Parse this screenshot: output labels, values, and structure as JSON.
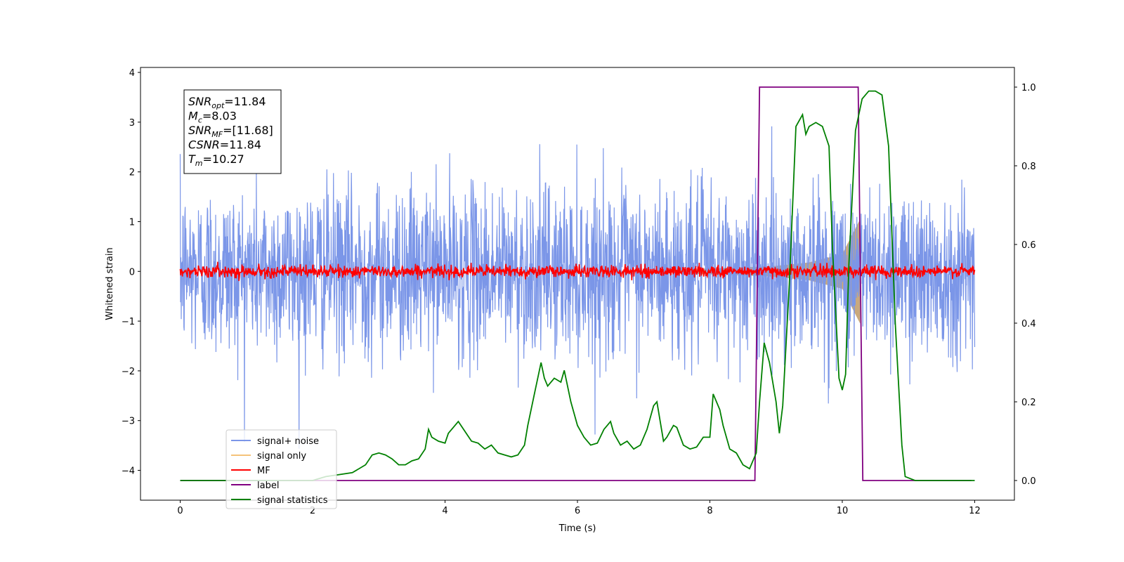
{
  "chart_data": {
    "type": "line",
    "xlabel": "Time (s)",
    "ylabel": "Whitened strain",
    "xlim": [
      -0.6,
      12.6
    ],
    "ylim": [
      -4.6,
      4.1
    ],
    "y2lim": [
      -0.05,
      1.05
    ],
    "xticks": [
      0,
      2,
      4,
      6,
      8,
      10,
      12
    ],
    "yticks": [
      -4,
      -3,
      -2,
      -1,
      0,
      1,
      2,
      3,
      4
    ],
    "y2ticks": [
      0.0,
      0.2,
      0.4,
      0.6,
      0.8,
      1.0
    ],
    "xtick_labels": [
      "0",
      "2",
      "4",
      "6",
      "8",
      "10",
      "12"
    ],
    "ytick_labels": [
      "−4",
      "−3",
      "−2",
      "−1",
      "0",
      "1",
      "2",
      "3",
      "4"
    ],
    "y2tick_labels": [
      "0.0",
      "0.2",
      "0.4",
      "0.6",
      "0.8",
      "1.0"
    ],
    "legend_position": "lower-left",
    "grid": false,
    "annotation": [
      {
        "name": "SNR",
        "sub": "opt",
        "value": "=11.84"
      },
      {
        "name": "M",
        "sub": "c",
        "value": "=8.03"
      },
      {
        "name": "SNR",
        "sub": "MF",
        "value": "=[11.68]"
      },
      {
        "name": "CSNR",
        "sub": "",
        "value": "=11.84"
      },
      {
        "name": "T",
        "sub": "m",
        "value": "=10.27"
      }
    ],
    "series": [
      {
        "name": "signal+ noise",
        "color": "#7b96e8",
        "axis": "left",
        "style": "noise",
        "x_range": [
          0,
          12
        ],
        "amplitude_sigma": 0.85,
        "peak_min": -4.2,
        "peak_max": 3.7
      },
      {
        "name": "signal only",
        "color": "#f5c27a",
        "axis": "left",
        "style": "chirp",
        "x_range": [
          7.5,
          10.27
        ],
        "envelope": [
          [
            7.5,
            0.04
          ],
          [
            8.5,
            0.08
          ],
          [
            9.0,
            0.11
          ],
          [
            9.5,
            0.18
          ],
          [
            10.0,
            0.35
          ],
          [
            10.27,
            1.05
          ]
        ]
      },
      {
        "name": "MF",
        "color": "#ff0000",
        "axis": "left",
        "style": "noise",
        "x_range": [
          0,
          12
        ],
        "amplitude_sigma": 0.06
      },
      {
        "name": "label",
        "color": "#800080",
        "axis": "right",
        "points": [
          [
            0,
            0
          ],
          [
            8.68,
            0
          ],
          [
            8.75,
            1
          ],
          [
            10.24,
            1
          ],
          [
            10.31,
            0
          ],
          [
            11.95,
            0
          ]
        ]
      },
      {
        "name": "signal statistics",
        "color": "#008000",
        "axis": "right",
        "points": [
          [
            0,
            0
          ],
          [
            0.5,
            0
          ],
          [
            1.0,
            0
          ],
          [
            1.5,
            0.0
          ],
          [
            2.0,
            0.0
          ],
          [
            2.2,
            0.01
          ],
          [
            2.4,
            0.015
          ],
          [
            2.6,
            0.02
          ],
          [
            2.8,
            0.04
          ],
          [
            2.9,
            0.065
          ],
          [
            3.0,
            0.07
          ],
          [
            3.1,
            0.065
          ],
          [
            3.2,
            0.055
          ],
          [
            3.3,
            0.04
          ],
          [
            3.4,
            0.04
          ],
          [
            3.5,
            0.05
          ],
          [
            3.6,
            0.055
          ],
          [
            3.7,
            0.08
          ],
          [
            3.75,
            0.13
          ],
          [
            3.8,
            0.11
          ],
          [
            3.9,
            0.1
          ],
          [
            4.0,
            0.095
          ],
          [
            4.05,
            0.12
          ],
          [
            4.15,
            0.14
          ],
          [
            4.2,
            0.15
          ],
          [
            4.3,
            0.125
          ],
          [
            4.4,
            0.1
          ],
          [
            4.5,
            0.095
          ],
          [
            4.6,
            0.08
          ],
          [
            4.7,
            0.09
          ],
          [
            4.8,
            0.07
          ],
          [
            4.9,
            0.065
          ],
          [
            5.0,
            0.06
          ],
          [
            5.1,
            0.065
          ],
          [
            5.2,
            0.09
          ],
          [
            5.25,
            0.14
          ],
          [
            5.35,
            0.22
          ],
          [
            5.45,
            0.3
          ],
          [
            5.5,
            0.26
          ],
          [
            5.55,
            0.24
          ],
          [
            5.65,
            0.26
          ],
          [
            5.75,
            0.25
          ],
          [
            5.8,
            0.28
          ],
          [
            5.9,
            0.2
          ],
          [
            6.0,
            0.14
          ],
          [
            6.1,
            0.11
          ],
          [
            6.2,
            0.09
          ],
          [
            6.3,
            0.095
          ],
          [
            6.4,
            0.13
          ],
          [
            6.5,
            0.15
          ],
          [
            6.55,
            0.12
          ],
          [
            6.65,
            0.09
          ],
          [
            6.75,
            0.1
          ],
          [
            6.85,
            0.08
          ],
          [
            6.95,
            0.09
          ],
          [
            7.05,
            0.13
          ],
          [
            7.15,
            0.19
          ],
          [
            7.2,
            0.2
          ],
          [
            7.3,
            0.1
          ],
          [
            7.35,
            0.11
          ],
          [
            7.45,
            0.14
          ],
          [
            7.5,
            0.135
          ],
          [
            7.6,
            0.09
          ],
          [
            7.7,
            0.08
          ],
          [
            7.8,
            0.085
          ],
          [
            7.9,
            0.11
          ],
          [
            8.0,
            0.11
          ],
          [
            8.05,
            0.22
          ],
          [
            8.15,
            0.18
          ],
          [
            8.2,
            0.14
          ],
          [
            8.3,
            0.08
          ],
          [
            8.4,
            0.07
          ],
          [
            8.5,
            0.04
          ],
          [
            8.6,
            0.03
          ],
          [
            8.7,
            0.07
          ],
          [
            8.75,
            0.2
          ],
          [
            8.82,
            0.35
          ],
          [
            8.9,
            0.3
          ],
          [
            9.0,
            0.2
          ],
          [
            9.05,
            0.12
          ],
          [
            9.1,
            0.19
          ],
          [
            9.2,
            0.5
          ],
          [
            9.3,
            0.9
          ],
          [
            9.4,
            0.93
          ],
          [
            9.45,
            0.88
          ],
          [
            9.5,
            0.9
          ],
          [
            9.6,
            0.91
          ],
          [
            9.7,
            0.9
          ],
          [
            9.8,
            0.85
          ],
          [
            9.85,
            0.6
          ],
          [
            9.95,
            0.26
          ],
          [
            10.0,
            0.23
          ],
          [
            10.05,
            0.27
          ],
          [
            10.1,
            0.55
          ],
          [
            10.2,
            0.89
          ],
          [
            10.3,
            0.97
          ],
          [
            10.4,
            0.99
          ],
          [
            10.5,
            0.99
          ],
          [
            10.6,
            0.98
          ],
          [
            10.7,
            0.85
          ],
          [
            10.8,
            0.4
          ],
          [
            10.9,
            0.09
          ],
          [
            10.95,
            0.01
          ],
          [
            11.1,
            0.0
          ],
          [
            12.0,
            0.0
          ]
        ]
      }
    ]
  }
}
